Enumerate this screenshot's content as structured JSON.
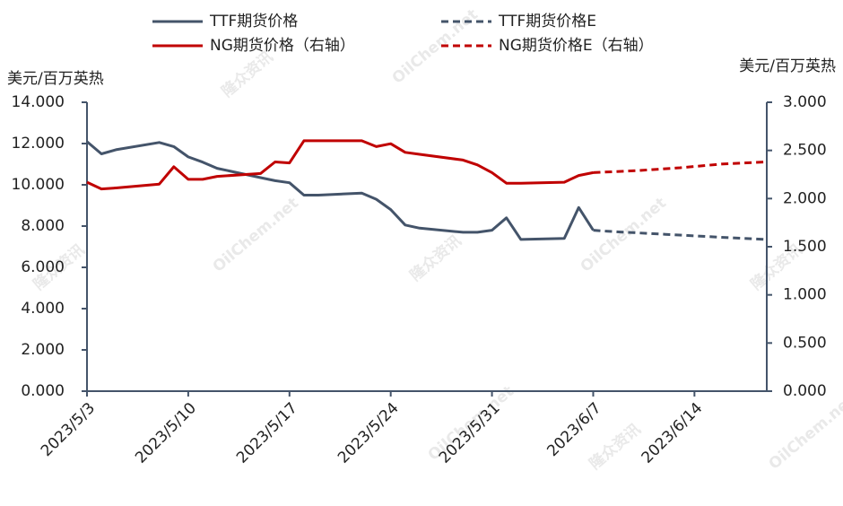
{
  "chart_data": {
    "type": "line",
    "y_title": "美元/百万英热",
    "y2_title": "美元/百万英热",
    "watermarks": [
      "隆众资讯",
      "OilChem.net"
    ],
    "xlim": [
      "2023-05-03",
      "2023-06-19"
    ],
    "xticks": [
      {
        "value": "2023-05-03",
        "label": "2023/5/3"
      },
      {
        "value": "2023-05-10",
        "label": "2023/5/10"
      },
      {
        "value": "2023-05-17",
        "label": "2023/5/17"
      },
      {
        "value": "2023-05-24",
        "label": "2023/5/24"
      },
      {
        "value": "2023-05-31",
        "label": "2023/5/31"
      },
      {
        "value": "2023-06-07",
        "label": "2023/6/7"
      },
      {
        "value": "2023-06-14",
        "label": "2023/6/14"
      }
    ],
    "ylim": [
      0,
      14
    ],
    "yticks": [
      {
        "value": 0,
        "label": "0.000"
      },
      {
        "value": 2,
        "label": "2.000"
      },
      {
        "value": 4,
        "label": "4.000"
      },
      {
        "value": 6,
        "label": "6.000"
      },
      {
        "value": 8,
        "label": "8.000"
      },
      {
        "value": 10,
        "label": "10.000"
      },
      {
        "value": 12,
        "label": "12.000"
      },
      {
        "value": 14,
        "label": "14.000"
      }
    ],
    "y2lim": [
      0,
      3
    ],
    "y2ticks": [
      {
        "value": 0,
        "label": "0.000"
      },
      {
        "value": 0.5,
        "label": "0.500"
      },
      {
        "value": 1,
        "label": "1.000"
      },
      {
        "value": 1.5,
        "label": "1.500"
      },
      {
        "value": 2,
        "label": "2.000"
      },
      {
        "value": 2.5,
        "label": "2.500"
      },
      {
        "value": 3,
        "label": "3.000"
      }
    ],
    "series": [
      {
        "name": "TTF期货价格",
        "color": "#44546a",
        "dashed": false,
        "x": [
          "2023-05-03",
          "2023-05-04",
          "2023-05-05",
          "2023-05-08",
          "2023-05-09",
          "2023-05-10",
          "2023-05-11",
          "2023-05-12",
          "2023-05-15",
          "2023-05-16",
          "2023-05-17",
          "2023-05-18",
          "2023-05-19",
          "2023-05-22",
          "2023-05-23",
          "2023-05-24",
          "2023-05-25",
          "2023-05-26",
          "2023-05-29",
          "2023-05-30",
          "2023-05-31",
          "2023-06-01",
          "2023-06-02",
          "2023-06-05",
          "2023-06-06",
          "2023-06-07"
        ],
        "values": [
          12.09,
          11.5,
          11.7,
          12.05,
          11.85,
          11.35,
          11.1,
          10.8,
          10.35,
          10.2,
          10.1,
          9.5,
          9.5,
          9.6,
          9.3,
          8.8,
          8.05,
          7.9,
          7.7,
          7.7,
          7.8,
          8.4,
          7.35,
          7.4,
          8.9,
          7.8
        ]
      },
      {
        "name": "TTF期货价格E",
        "color": "#44546a",
        "dashed": true,
        "x": [
          "2023-06-07",
          "2023-06-08",
          "2023-06-12",
          "2023-06-16",
          "2023-06-19"
        ],
        "values": [
          7.8,
          7.75,
          7.6,
          7.45,
          7.35
        ]
      },
      {
        "name": "NG期货价格（右轴）",
        "color": "#c00000",
        "dashed": false,
        "axis": "y2",
        "x": [
          "2023-05-03",
          "2023-05-04",
          "2023-05-05",
          "2023-05-08",
          "2023-05-09",
          "2023-05-10",
          "2023-05-11",
          "2023-05-12",
          "2023-05-15",
          "2023-05-16",
          "2023-05-17",
          "2023-05-18",
          "2023-05-19",
          "2023-05-22",
          "2023-05-23",
          "2023-05-24",
          "2023-05-25",
          "2023-05-26",
          "2023-05-29",
          "2023-05-30",
          "2023-05-31",
          "2023-06-01",
          "2023-06-02",
          "2023-06-05",
          "2023-06-06",
          "2023-06-07"
        ],
        "values": [
          2.17,
          2.1,
          2.11,
          2.15,
          2.33,
          2.2,
          2.2,
          2.23,
          2.26,
          2.38,
          2.37,
          2.6,
          2.6,
          2.6,
          2.54,
          2.57,
          2.48,
          2.46,
          2.4,
          2.35,
          2.27,
          2.16,
          2.16,
          2.17,
          2.24,
          2.27
        ]
      },
      {
        "name": "NG期货价格E（右轴）",
        "color": "#c00000",
        "dashed": true,
        "axis": "y2",
        "x": [
          "2023-06-07",
          "2023-06-10",
          "2023-06-13",
          "2023-06-16",
          "2023-06-19"
        ],
        "values": [
          2.27,
          2.29,
          2.32,
          2.36,
          2.38
        ]
      }
    ]
  }
}
